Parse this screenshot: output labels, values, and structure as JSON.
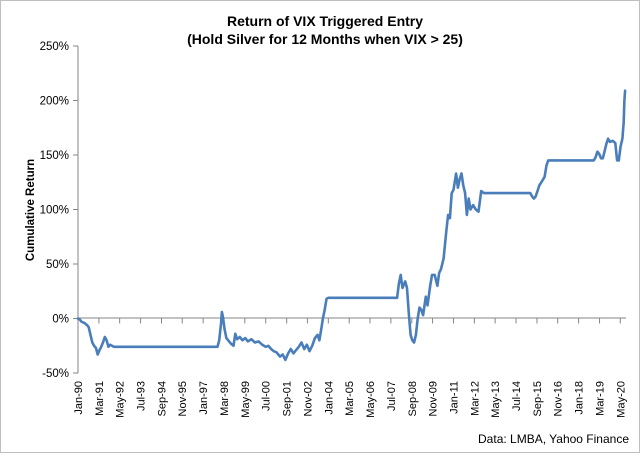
{
  "chart_data": {
    "type": "line",
    "title_line1": "Return of VIX Triggered Entry",
    "title_line2": "(Hold Silver for 12 Months when VIX > 25)",
    "xlabel": "",
    "ylabel": "Cumulative Return",
    "source": "Data: LMBA, Yahoo Finance",
    "ylim": [
      -50,
      250
    ],
    "yticks": [
      -50,
      0,
      50,
      100,
      150,
      200,
      250
    ],
    "ytick_labels": [
      "-50%",
      "0%",
      "50%",
      "100%",
      "150%",
      "200%",
      "250%"
    ],
    "xticks": [
      {
        "label": "Jan-90",
        "t": 1990.0
      },
      {
        "label": "Mar-91",
        "t": 1991.17
      },
      {
        "label": "May-92",
        "t": 1992.33
      },
      {
        "label": "Jul-93",
        "t": 1993.5
      },
      {
        "label": "Sep-94",
        "t": 1994.67
      },
      {
        "label": "Nov-95",
        "t": 1995.83
      },
      {
        "label": "Jan-97",
        "t": 1997.0
      },
      {
        "label": "Mar-98",
        "t": 1998.17
      },
      {
        "label": "May-99",
        "t": 1999.33
      },
      {
        "label": "Jul-00",
        "t": 2000.5
      },
      {
        "label": "Sep-01",
        "t": 2001.67
      },
      {
        "label": "Nov-02",
        "t": 2002.83
      },
      {
        "label": "Jan-04",
        "t": 2004.0
      },
      {
        "label": "Mar-05",
        "t": 2005.17
      },
      {
        "label": "May-06",
        "t": 2006.33
      },
      {
        "label": "Jul-07",
        "t": 2007.5
      },
      {
        "label": "Sep-08",
        "t": 2008.67
      },
      {
        "label": "Nov-09",
        "t": 2009.83
      },
      {
        "label": "Jan-11",
        "t": 2011.0
      },
      {
        "label": "Mar-12",
        "t": 2012.17
      },
      {
        "label": "May-13",
        "t": 2013.33
      },
      {
        "label": "Jul-14",
        "t": 2014.5
      },
      {
        "label": "Sep-15",
        "t": 2015.67
      },
      {
        "label": "Nov-16",
        "t": 2016.83
      },
      {
        "label": "Jan-18",
        "t": 2018.0
      },
      {
        "label": "Mar-19",
        "t": 2019.17
      },
      {
        "label": "May-20",
        "t": 2020.33
      }
    ],
    "xlim": [
      1990.0,
      2020.65
    ],
    "grid": false,
    "legend": "none",
    "series": [
      {
        "color": "#4a7ebb",
        "points": [
          [
            1990.0,
            0
          ],
          [
            1990.1,
            -1
          ],
          [
            1990.2,
            -3
          ],
          [
            1990.35,
            -4
          ],
          [
            1990.5,
            -6
          ],
          [
            1990.6,
            -8
          ],
          [
            1990.7,
            -15
          ],
          [
            1990.8,
            -22
          ],
          [
            1990.9,
            -25
          ],
          [
            1991.0,
            -27
          ],
          [
            1991.1,
            -33
          ],
          [
            1991.2,
            -29
          ],
          [
            1991.3,
            -26
          ],
          [
            1991.4,
            -22
          ],
          [
            1991.5,
            -17
          ],
          [
            1991.6,
            -20
          ],
          [
            1991.7,
            -26
          ],
          [
            1991.8,
            -24
          ],
          [
            1991.9,
            -25
          ],
          [
            1992.0,
            -26
          ],
          [
            1997.8,
            -26
          ],
          [
            1997.9,
            -20
          ],
          [
            1998.0,
            -5
          ],
          [
            1998.05,
            6
          ],
          [
            1998.1,
            2
          ],
          [
            1998.2,
            -10
          ],
          [
            1998.3,
            -18
          ],
          [
            1998.4,
            -20
          ],
          [
            1998.55,
            -23
          ],
          [
            1998.7,
            -25
          ],
          [
            1998.8,
            -14
          ],
          [
            1998.9,
            -19
          ],
          [
            1999.05,
            -17
          ],
          [
            1999.2,
            -20
          ],
          [
            1999.35,
            -18
          ],
          [
            1999.5,
            -21
          ],
          [
            1999.7,
            -19
          ],
          [
            1999.9,
            -22
          ],
          [
            2000.1,
            -21
          ],
          [
            2000.3,
            -24
          ],
          [
            2000.5,
            -26
          ],
          [
            2000.65,
            -25
          ],
          [
            2000.8,
            -28
          ],
          [
            2000.95,
            -30
          ],
          [
            2001.1,
            -31
          ],
          [
            2001.3,
            -35
          ],
          [
            2001.45,
            -33
          ],
          [
            2001.6,
            -38
          ],
          [
            2001.75,
            -32
          ],
          [
            2001.9,
            -28
          ],
          [
            2002.05,
            -32
          ],
          [
            2002.2,
            -29
          ],
          [
            2002.35,
            -26
          ],
          [
            2002.5,
            -22
          ],
          [
            2002.65,
            -28
          ],
          [
            2002.8,
            -24
          ],
          [
            2002.95,
            -30
          ],
          [
            2003.1,
            -25
          ],
          [
            2003.25,
            -18
          ],
          [
            2003.4,
            -15
          ],
          [
            2003.5,
            -20
          ],
          [
            2003.6,
            -10
          ],
          [
            2003.7,
            0
          ],
          [
            2003.8,
            8
          ],
          [
            2003.9,
            18
          ],
          [
            2004.0,
            19
          ],
          [
            2007.85,
            19
          ],
          [
            2007.95,
            32
          ],
          [
            2008.05,
            40
          ],
          [
            2008.15,
            28
          ],
          [
            2008.3,
            34
          ],
          [
            2008.4,
            28
          ],
          [
            2008.5,
            5
          ],
          [
            2008.6,
            -15
          ],
          [
            2008.7,
            -20
          ],
          [
            2008.8,
            -22
          ],
          [
            2008.9,
            -15
          ],
          [
            2009.0,
            0
          ],
          [
            2009.1,
            10
          ],
          [
            2009.2,
            8
          ],
          [
            2009.3,
            3
          ],
          [
            2009.45,
            20
          ],
          [
            2009.55,
            12
          ],
          [
            2009.7,
            30
          ],
          [
            2009.8,
            40
          ],
          [
            2009.95,
            40
          ],
          [
            2010.1,
            30
          ],
          [
            2010.2,
            42
          ],
          [
            2010.3,
            45
          ],
          [
            2010.45,
            55
          ],
          [
            2010.6,
            80
          ],
          [
            2010.7,
            95
          ],
          [
            2010.8,
            92
          ],
          [
            2010.9,
            115
          ],
          [
            2011.0,
            118
          ],
          [
            2011.15,
            133
          ],
          [
            2011.25,
            120
          ],
          [
            2011.35,
            128
          ],
          [
            2011.45,
            133
          ],
          [
            2011.55,
            122
          ],
          [
            2011.65,
            115
          ],
          [
            2011.75,
            95
          ],
          [
            2011.85,
            110
          ],
          [
            2011.95,
            100
          ],
          [
            2012.1,
            104
          ],
          [
            2012.25,
            100
          ],
          [
            2012.4,
            98
          ],
          [
            2012.55,
            117
          ],
          [
            2012.7,
            115
          ],
          [
            2015.3,
            115
          ],
          [
            2015.4,
            112
          ],
          [
            2015.5,
            110
          ],
          [
            2015.6,
            112
          ],
          [
            2015.7,
            117
          ],
          [
            2015.8,
            122
          ],
          [
            2015.95,
            126
          ],
          [
            2016.1,
            130
          ],
          [
            2016.2,
            140
          ],
          [
            2016.3,
            145
          ],
          [
            2018.85,
            145
          ],
          [
            2018.95,
            148
          ],
          [
            2019.05,
            153
          ],
          [
            2019.15,
            151
          ],
          [
            2019.25,
            147
          ],
          [
            2019.35,
            147
          ],
          [
            2019.45,
            153
          ],
          [
            2019.55,
            160
          ],
          [
            2019.65,
            165
          ],
          [
            2019.75,
            162
          ],
          [
            2019.9,
            163
          ],
          [
            2020.05,
            161
          ],
          [
            2020.15,
            145
          ],
          [
            2020.25,
            145
          ],
          [
            2020.35,
            158
          ],
          [
            2020.45,
            165
          ],
          [
            2020.52,
            180
          ],
          [
            2020.56,
            200
          ],
          [
            2020.6,
            209
          ]
        ]
      }
    ]
  }
}
